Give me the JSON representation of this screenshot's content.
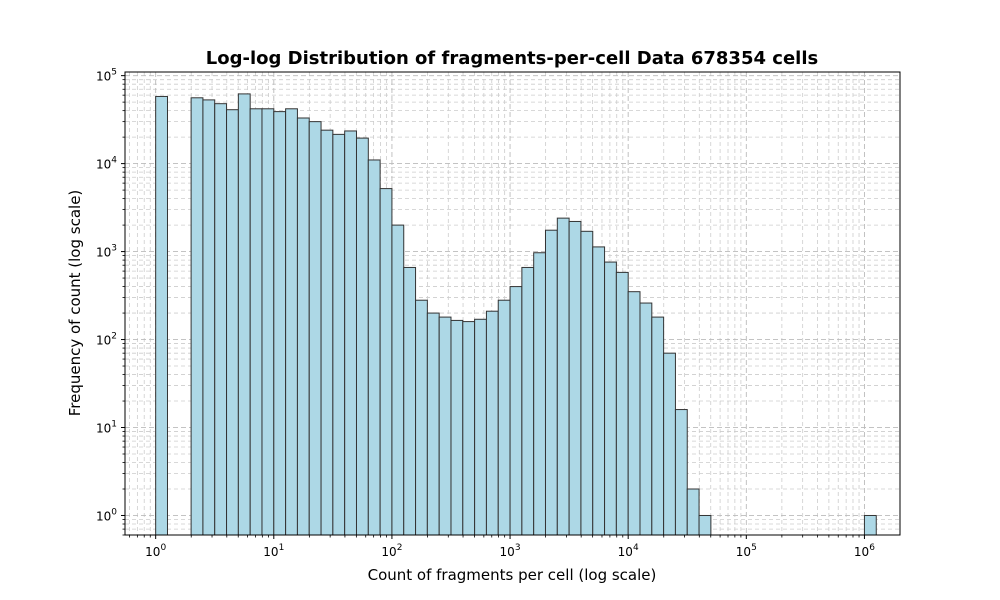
{
  "chart_data": {
    "type": "bar",
    "title": "Log-log Distribution of fragments-per-cell Data 678354 cells",
    "xlabel": "Count of fragments per cell (log scale)",
    "ylabel": "Frequency of count (log scale)",
    "x_scale": "log",
    "y_scale": "log",
    "xlim": [
      0.55,
      2000000
    ],
    "ylim": [
      0.6,
      110000
    ],
    "grid": true,
    "bar_color": "#add8e6",
    "edge_color": "#333333",
    "x_ticks": [
      {
        "value": 1,
        "base": "10",
        "exp": "0"
      },
      {
        "value": 10,
        "base": "10",
        "exp": "1"
      },
      {
        "value": 100,
        "base": "10",
        "exp": "2"
      },
      {
        "value": 1000,
        "base": "10",
        "exp": "3"
      },
      {
        "value": 10000,
        "base": "10",
        "exp": "4"
      },
      {
        "value": 100000,
        "base": "10",
        "exp": "5"
      },
      {
        "value": 1000000,
        "base": "10",
        "exp": "6"
      }
    ],
    "y_ticks": [
      {
        "value": 1,
        "base": "10",
        "exp": "0"
      },
      {
        "value": 10,
        "base": "10",
        "exp": "1"
      },
      {
        "value": 100,
        "base": "10",
        "exp": "2"
      },
      {
        "value": 1000,
        "base": "10",
        "exp": "3"
      },
      {
        "value": 10000,
        "base": "10",
        "exp": "4"
      },
      {
        "value": 100000,
        "base": "10",
        "exp": "5"
      }
    ],
    "bin_edges": [
      1,
      1.259,
      1.585,
      1.995,
      2.512,
      3.162,
      3.981,
      5.012,
      6.31,
      7.943,
      10,
      12.59,
      15.85,
      19.95,
      25.12,
      31.62,
      39.81,
      50.12,
      63.1,
      79.43,
      100,
      125.9,
      158.5,
      199.5,
      251.2,
      316.2,
      398.1,
      501.2,
      631,
      794.3,
      1000,
      1259,
      1585,
      1995,
      2512,
      3162,
      3981,
      5012,
      6310,
      7943,
      10000,
      12590,
      15850,
      19950,
      25120,
      31620,
      39810,
      50120,
      63100,
      79430,
      100000,
      125900,
      158500,
      199500,
      251200,
      316200,
      398100,
      501200,
      631000,
      794300,
      1000000,
      1259000
    ],
    "counts": [
      58000,
      0,
      0,
      56000,
      53000,
      48000,
      41000,
      62000,
      42000,
      42000,
      39000,
      42000,
      33000,
      30000,
      24000,
      21500,
      23500,
      19500,
      11000,
      5200,
      2000,
      660,
      280,
      200,
      180,
      165,
      160,
      170,
      210,
      280,
      400,
      660,
      970,
      1750,
      2400,
      2200,
      1700,
      1130,
      760,
      580,
      350,
      260,
      180,
      70,
      16,
      2,
      1,
      0,
      0,
      0,
      0,
      0,
      0,
      0,
      0,
      0,
      0,
      0,
      0,
      0,
      1
    ]
  }
}
